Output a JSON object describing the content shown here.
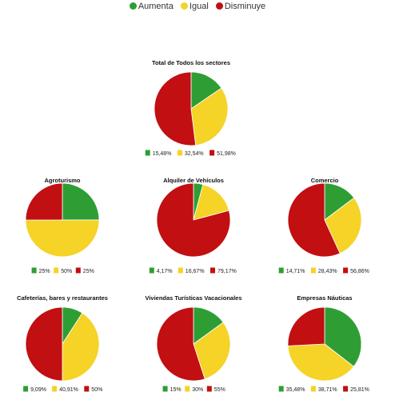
{
  "legend": [
    {
      "label": "Aumenta",
      "color": "#2e9e34"
    },
    {
      "label": "Igual",
      "color": "#f5d327"
    },
    {
      "label": "Disminuye",
      "color": "#c20f12"
    }
  ],
  "chart_data": [
    {
      "type": "pie",
      "title": "Total de Todos los sectores",
      "categories": [
        "Aumenta",
        "Igual",
        "Disminuye"
      ],
      "values": [
        15.48,
        32.54,
        51.98
      ],
      "labels": [
        "15,48%",
        "32,54%",
        "51,98%"
      ]
    },
    {
      "type": "pie",
      "title": "Agroturismo",
      "categories": [
        "Aumenta",
        "Igual",
        "Disminuye"
      ],
      "values": [
        25,
        50,
        25
      ],
      "labels": [
        "25%",
        "50%",
        "25%"
      ]
    },
    {
      "type": "pie",
      "title": "Alquiler de Vehículos",
      "categories": [
        "Aumenta",
        "Igual",
        "Disminuye"
      ],
      "values": [
        4.17,
        16.67,
        79.17
      ],
      "labels": [
        "4,17%",
        "16,67%",
        "79,17%"
      ]
    },
    {
      "type": "pie",
      "title": "Comercio",
      "categories": [
        "Aumenta",
        "Igual",
        "Disminuye"
      ],
      "values": [
        14.71,
        28.43,
        56.86
      ],
      "labels": [
        "14,71%",
        "28,43%",
        "56,86%"
      ]
    },
    {
      "type": "pie",
      "title": "Cafeterías, bares y restaurantes",
      "categories": [
        "Aumenta",
        "Igual",
        "Disminuye"
      ],
      "values": [
        9.09,
        40.91,
        50
      ],
      "labels": [
        "9,09%",
        "40,91%",
        "50%"
      ]
    },
    {
      "type": "pie",
      "title": "Viviendas Turísticas Vacacionales",
      "categories": [
        "Aumenta",
        "Igual",
        "Disminuye"
      ],
      "values": [
        15,
        30,
        55
      ],
      "labels": [
        "15%",
        "30%",
        "55%"
      ]
    },
    {
      "type": "pie",
      "title": "Empresas Náuticas",
      "categories": [
        "Aumenta",
        "Igual",
        "Disminuye"
      ],
      "values": [
        35.48,
        38.71,
        25.81
      ],
      "labels": [
        "35,48%",
        "38,71%",
        "25,81%"
      ]
    }
  ]
}
